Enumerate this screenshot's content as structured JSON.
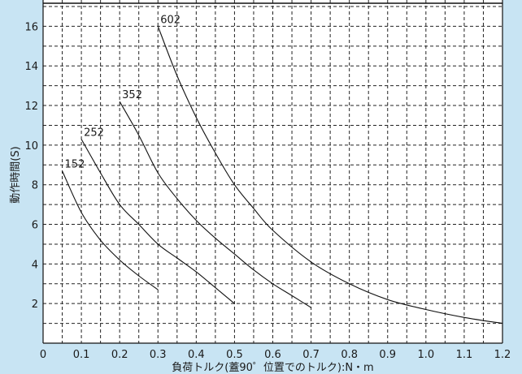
{
  "chart_data": {
    "type": "line",
    "xlabel": "負荷トルク(蓋90゜位置でのトルク):N・m",
    "ylabel": "動作時間(S)",
    "xlim": [
      0,
      1.2
    ],
    "ylim": [
      0,
      17
    ],
    "x_ticks": [
      0,
      0.1,
      0.2,
      0.3,
      0.4,
      0.5,
      0.6,
      0.7,
      0.8,
      0.9,
      1.0,
      1.1,
      1.2
    ],
    "x_tick_labels": [
      "0",
      "0.1",
      "0.2",
      "0.3",
      "0.4",
      "0.5",
      "0.6",
      "0.7",
      "0.8",
      "0.9",
      "1.0",
      "1.1",
      "1.2"
    ],
    "y_ticks": [
      2,
      4,
      6,
      8,
      10,
      12,
      14,
      16
    ],
    "y_tick_labels": [
      "2",
      "4",
      "6",
      "8",
      "10",
      "12",
      "14",
      "16"
    ],
    "grid": true,
    "colors": {
      "background": "#c8e4f3",
      "plot": "#ffffff",
      "line": "#111111",
      "grid": "#222222"
    },
    "series": [
      {
        "name": "152",
        "points": [
          [
            0.05,
            8.7
          ],
          [
            0.1,
            6.6
          ],
          [
            0.15,
            5.2
          ],
          [
            0.2,
            4.2
          ],
          [
            0.25,
            3.4
          ],
          [
            0.3,
            2.7
          ]
        ]
      },
      {
        "name": "252",
        "points": [
          [
            0.1,
            10.3
          ],
          [
            0.15,
            8.6
          ],
          [
            0.2,
            7.0
          ],
          [
            0.25,
            6.0
          ],
          [
            0.3,
            5.0
          ],
          [
            0.35,
            4.3
          ],
          [
            0.4,
            3.6
          ],
          [
            0.45,
            2.8
          ],
          [
            0.5,
            2.0
          ]
        ]
      },
      {
        "name": "352",
        "points": [
          [
            0.2,
            12.2
          ],
          [
            0.25,
            10.5
          ],
          [
            0.3,
            8.6
          ],
          [
            0.35,
            7.3
          ],
          [
            0.4,
            6.2
          ],
          [
            0.45,
            5.3
          ],
          [
            0.5,
            4.5
          ],
          [
            0.55,
            3.7
          ],
          [
            0.6,
            3.0
          ],
          [
            0.65,
            2.4
          ],
          [
            0.7,
            1.8
          ]
        ]
      },
      {
        "name": "602",
        "points": [
          [
            0.3,
            16.0
          ],
          [
            0.35,
            13.5
          ],
          [
            0.4,
            11.4
          ],
          [
            0.45,
            9.6
          ],
          [
            0.5,
            8.0
          ],
          [
            0.55,
            6.8
          ],
          [
            0.6,
            5.7
          ],
          [
            0.7,
            4.1
          ],
          [
            0.8,
            3.0
          ],
          [
            0.9,
            2.2
          ],
          [
            1.0,
            1.7
          ],
          [
            1.1,
            1.3
          ],
          [
            1.2,
            1.0
          ]
        ]
      }
    ]
  }
}
